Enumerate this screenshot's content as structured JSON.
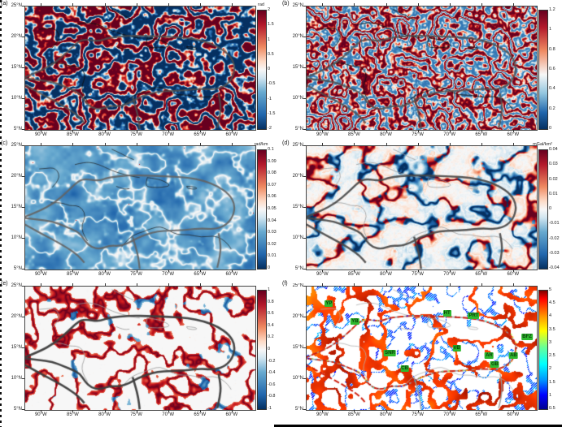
{
  "figure": {
    "description": "Six-panel geophysical anomaly maps of the Caribbean region",
    "x_axis_ticks": [
      "90°W",
      "85°W",
      "80°W",
      "75°W",
      "70°W",
      "65°W",
      "60°W"
    ],
    "y_axis_ticks": [
      "25°N",
      "20°N",
      "15°N",
      "10°N",
      "5°N"
    ]
  },
  "chart_data": [
    {
      "panel": "(a)",
      "type": "heatmap",
      "x_ticks": [
        "90°W",
        "85°W",
        "80°W",
        "75°W",
        "70°W",
        "65°W",
        "60°W"
      ],
      "y_ticks": [
        "25°N",
        "20°N",
        "15°N",
        "10°N",
        "5°N"
      ],
      "colorbar": {
        "unit": "rad",
        "ticks": [
          "2",
          "1.5",
          "1",
          "0.5",
          "0",
          "-0.5",
          "-1",
          "-1.5",
          "-2"
        ],
        "range": [
          -2,
          2
        ],
        "palette": "diverging red-white-blue",
        "stops": [
          [
            "#67001f",
            0
          ],
          [
            "#b2182b",
            12
          ],
          [
            "#ef8a62",
            31
          ],
          [
            "#fddbc7",
            43
          ],
          [
            "#f7f7f7",
            50
          ],
          [
            "#d1e5f0",
            57
          ],
          [
            "#67a9cf",
            69
          ],
          [
            "#2166ac",
            88
          ],
          [
            "#053061",
            100
          ]
        ]
      }
    },
    {
      "panel": "(b)",
      "type": "heatmap",
      "x_ticks": [
        "90°W",
        "85°W",
        "80°W",
        "75°W",
        "70°W",
        "65°W",
        "60°W"
      ],
      "y_ticks": [
        "25°N",
        "20°N",
        "15°N",
        "10°N",
        "5°N"
      ],
      "colorbar": {
        "unit": "",
        "ticks": [
          "1.2",
          "1",
          "0.8",
          "0.6",
          "0.4",
          "0.2",
          "0"
        ],
        "range": [
          0,
          1.2
        ],
        "palette": "diverging red-white-blue, red dominant",
        "stops": [
          [
            "#67001f",
            0
          ],
          [
            "#b2182b",
            14
          ],
          [
            "#ef8a62",
            34
          ],
          [
            "#f7f7f7",
            54
          ],
          [
            "#92c5de",
            70
          ],
          [
            "#2166ac",
            86
          ],
          [
            "#053061",
            100
          ]
        ]
      }
    },
    {
      "panel": "(c)",
      "type": "heatmap",
      "x_ticks": [
        "90°W",
        "85°W",
        "80°W",
        "75°W",
        "70°W",
        "65°W",
        "60°W"
      ],
      "y_ticks": [
        "25°N",
        "20°N",
        "15°N",
        "10°N",
        "5°N"
      ],
      "colorbar": {
        "unit": "rad/km",
        "ticks": [
          "0.1",
          "0.09",
          "0.08",
          "0.07",
          "0.06",
          "0.05",
          "0.04",
          "0.03",
          "0.02",
          "0.01",
          "0"
        ],
        "range": [
          0,
          0.1
        ],
        "palette": "diverging red-white-blue, blue dominant map",
        "stops": [
          [
            "#67001f",
            0
          ],
          [
            "#b2182b",
            12
          ],
          [
            "#ef8a62",
            31
          ],
          [
            "#fddbc7",
            43
          ],
          [
            "#f7f7f7",
            50
          ],
          [
            "#d1e5f0",
            57
          ],
          [
            "#67a9cf",
            69
          ],
          [
            "#2166ac",
            88
          ],
          [
            "#053061",
            100
          ]
        ]
      }
    },
    {
      "panel": "(d)",
      "type": "heatmap",
      "x_ticks": [
        "90°W",
        "85°W",
        "80°W",
        "75°W",
        "70°W",
        "65°W",
        "60°W"
      ],
      "y_ticks": [
        "25°N",
        "20°N",
        "15°N",
        "10°N",
        "5°N"
      ],
      "colorbar": {
        "unit": "mGal/km²",
        "ticks": [
          "0.04",
          "0.03",
          "0.02",
          "0.01",
          "0",
          "-0.01",
          "-0.02",
          "-0.03",
          "-0.04"
        ],
        "range": [
          -0.04,
          0.04
        ],
        "palette": "diverging red-white-blue lineaments on white",
        "stops": [
          [
            "#67001f",
            0
          ],
          [
            "#b2182b",
            12
          ],
          [
            "#ef8a62",
            31
          ],
          [
            "#fddbc7",
            43
          ],
          [
            "#f7f7f7",
            50
          ],
          [
            "#d1e5f0",
            57
          ],
          [
            "#67a9cf",
            69
          ],
          [
            "#2166ac",
            88
          ],
          [
            "#053061",
            100
          ]
        ]
      }
    },
    {
      "panel": "(e)",
      "type": "heatmap",
      "x_ticks": [
        "90°W",
        "85°W",
        "80°W",
        "75°W",
        "70°W",
        "65°W",
        "60°W"
      ],
      "y_ticks": [
        "25°N",
        "20°N",
        "15°N",
        "10°N",
        "5°N"
      ],
      "colorbar": {
        "unit": "",
        "ticks": [
          "1",
          "0.8",
          "0.6",
          "0.4",
          "0.2",
          "0",
          "-0.2",
          "-0.4",
          "-0.6",
          "-0.8",
          "-1"
        ],
        "range": [
          -1,
          1
        ],
        "palette": "diverging red-white-blue curves on white",
        "stops": [
          [
            "#67001f",
            0
          ],
          [
            "#b2182b",
            12
          ],
          [
            "#ef8a62",
            31
          ],
          [
            "#fddbc7",
            43
          ],
          [
            "#f7f7f7",
            50
          ],
          [
            "#d1e5f0",
            57
          ],
          [
            "#67a9cf",
            69
          ],
          [
            "#2166ac",
            88
          ],
          [
            "#053061",
            100
          ]
        ]
      }
    },
    {
      "panel": "(f)",
      "type": "heatmap",
      "x_ticks": [
        "90°W",
        "85°W",
        "80°W",
        "75°W",
        "70°W",
        "65°W",
        "60°W"
      ],
      "y_ticks": [
        "25°N",
        "20°N",
        "15°N",
        "10°N",
        "5°N"
      ],
      "colorbar": {
        "unit": "",
        "ticks": [
          "5",
          "4.5",
          "4",
          "3.5",
          "3",
          "2.5",
          "2",
          "1.5",
          "1",
          "0.5"
        ],
        "range": [
          0.5,
          5
        ],
        "palette": "jet rainbow curves on white",
        "stops": [
          [
            "#7f0000",
            0
          ],
          [
            "#ff0000",
            7
          ],
          [
            "#ff9900",
            22
          ],
          [
            "#ffff00",
            34
          ],
          [
            "#66ff99",
            48
          ],
          [
            "#00ffff",
            62
          ],
          [
            "#0099ff",
            75
          ],
          [
            "#0000ff",
            88
          ],
          [
            "#00008f",
            100
          ]
        ]
      },
      "annotations": [
        {
          "text": "YP",
          "x": 0.097,
          "y": 0.138
        },
        {
          "text": "YB",
          "x": 0.21,
          "y": 0.283
        },
        {
          "text": "HT",
          "x": 0.61,
          "y": 0.217
        },
        {
          "text": "PRT",
          "x": 0.726,
          "y": 0.237
        },
        {
          "text": "BFZ",
          "x": 0.958,
          "y": 0.408
        },
        {
          "text": "VB",
          "x": 0.652,
          "y": 0.5
        },
        {
          "text": "SNR",
          "x": 0.362,
          "y": 0.539
        },
        {
          "text": "CB",
          "x": 0.426,
          "y": 0.664
        },
        {
          "text": "AR",
          "x": 0.793,
          "y": 0.559
        },
        {
          "text": "AB",
          "x": 0.899,
          "y": 0.559
        },
        {
          "text": "GB",
          "x": 0.818,
          "y": 0.632
        }
      ]
    }
  ]
}
